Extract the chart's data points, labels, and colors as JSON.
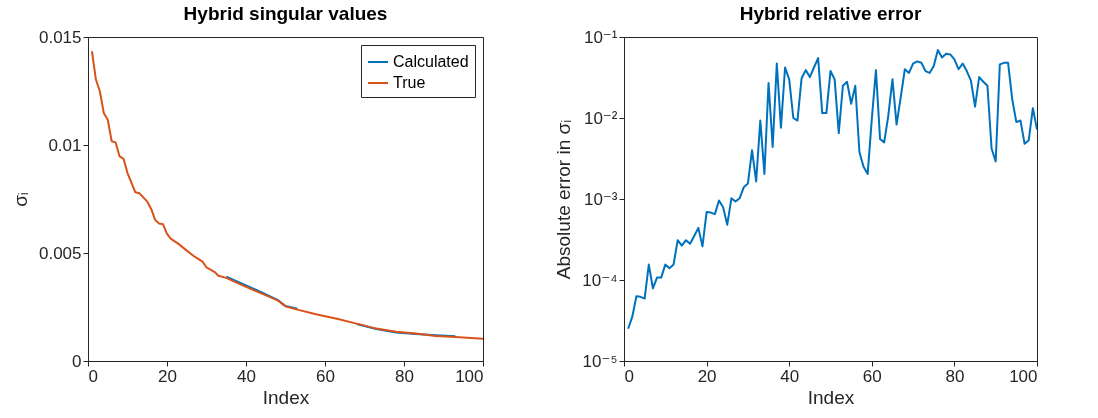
{
  "chart_data": [
    {
      "type": "line",
      "title": "Hybrid singular values",
      "xlabel": "Index",
      "ylabel": "σᵢ",
      "xlim": [
        0,
        100
      ],
      "xticks": [
        0,
        20,
        40,
        60,
        80,
        100
      ],
      "ylim": [
        0,
        0.015
      ],
      "yticks": [
        0,
        0.005,
        0.01,
        0.015
      ],
      "grid": false,
      "legend": "top right",
      "x": [
        1,
        2,
        3,
        4,
        5,
        6,
        7,
        8,
        9,
        10,
        12,
        13,
        15,
        16,
        17,
        18,
        19,
        20,
        21,
        23,
        25,
        27,
        29,
        30,
        32,
        33,
        35,
        39,
        43,
        48,
        50,
        53,
        58,
        63,
        68,
        73,
        78,
        83,
        88,
        93,
        99,
        100
      ],
      "series": [
        {
          "name": "Calculated",
          "color": "#0072bd",
          "values": [
            null,
            null,
            null,
            null,
            null,
            null,
            null,
            null,
            null,
            null,
            null,
            null,
            null,
            null,
            null,
            null,
            null,
            null,
            null,
            null,
            null,
            null,
            null,
            null,
            null,
            null,
            0.0039,
            0.00358,
            0.00326,
            0.00283,
            0.00255,
            0.00242,
            null,
            null,
            0.00171,
            0.00148,
            0.00132,
            0.00125,
            0.00119,
            0.00115,
            null,
            null
          ]
        },
        {
          "name": "True",
          "color": "#d95319",
          "values": [
            0.01434,
            0.01303,
            0.01249,
            0.01148,
            0.01117,
            0.01017,
            0.01012,
            0.00947,
            0.00936,
            0.0087,
            0.00781,
            0.00777,
            0.00738,
            0.00704,
            0.00653,
            0.00637,
            0.00633,
            0.00588,
            0.00565,
            0.00541,
            0.00511,
            0.00483,
            0.0046,
            0.00433,
            0.00413,
            0.00395,
            0.00385,
            0.00351,
            0.0032,
            0.00281,
            0.00253,
            0.00238,
            0.00215,
            0.00196,
            0.00173,
            0.0015,
            0.00135,
            0.00127,
            0.00116,
            0.00111,
            0.00104,
            0.00103
          ]
        }
      ]
    },
    {
      "type": "line",
      "title": "Hybrid relative error",
      "xlabel": "Index",
      "ylabel": "Absolute error in σᵢ",
      "log": "y",
      "xlim": [
        0,
        100
      ],
      "xticks": [
        0,
        20,
        40,
        60,
        80,
        100
      ],
      "ylim": [
        1e-05,
        0.1
      ],
      "yticks": [
        {
          "value": 1e-05,
          "label": "10⁻⁵"
        },
        {
          "value": 0.0001,
          "label": "10⁻⁴"
        },
        {
          "value": 0.001,
          "label": "10⁻³"
        },
        {
          "value": 0.01,
          "label": "10⁻²"
        },
        {
          "value": 0.1,
          "label": "10⁻¹"
        }
      ],
      "grid": false,
      "x": [
        1,
        2,
        3,
        4,
        5,
        6,
        7,
        8,
        9,
        10,
        11,
        12,
        13,
        14,
        15,
        16,
        17,
        18,
        19,
        20,
        21,
        22,
        23,
        24,
        25,
        26,
        27,
        28,
        29,
        30,
        31,
        32,
        33,
        34,
        35,
        36,
        37,
        38,
        39,
        40,
        41,
        42,
        43,
        44,
        45,
        46,
        47,
        48,
        49,
        50,
        51,
        52,
        53,
        54,
        55,
        56,
        57,
        58,
        59,
        60,
        61,
        62,
        63,
        64,
        65,
        66,
        67,
        68,
        69,
        70,
        71,
        72,
        73,
        74,
        75,
        76,
        77,
        78,
        79,
        80,
        81,
        82,
        83,
        84,
        85,
        86,
        87,
        88,
        89,
        90,
        91,
        92,
        93,
        94,
        95,
        96,
        97,
        98,
        99,
        100
      ],
      "series": [
        {
          "color": "#0072bd",
          "values": [
            2.5e-05,
            3.5e-05,
            6.3e-05,
            6.2e-05,
            5.9e-05,
            0.000155,
            7.9e-05,
            0.000107,
            0.000107,
            0.000155,
            0.00014,
            0.000155,
            0.00031,
            0.000265,
            0.00031,
            0.00028,
            0.00035,
            0.00044,
            0.00026,
            0.00069,
            0.00068,
            0.00065,
            0.00096,
            0.00079,
            0.00048,
            0.00102,
            0.00093,
            0.00102,
            0.0014,
            0.00155,
            0.004,
            0.00165,
            0.0093,
            0.00204,
            0.027,
            0.0044,
            0.047,
            0.0076,
            0.042,
            0.03,
            0.01,
            0.0093,
            0.031,
            0.039,
            0.032,
            0.042,
            0.055,
            0.0115,
            0.0115,
            0.038,
            0.03,
            0.0065,
            0.025,
            0.028,
            0.015,
            0.025,
            0.0038,
            0.0025,
            0.00204,
            0.0097,
            0.039,
            0.0055,
            0.005,
            0.0107,
            0.03,
            0.0083,
            0.018,
            0.04,
            0.036,
            0.047,
            0.05,
            0.048,
            0.038,
            0.036,
            0.044,
            0.069,
            0.056,
            0.062,
            0.061,
            0.053,
            0.04,
            0.047,
            0.038,
            0.029,
            0.0138,
            0.032,
            0.028,
            0.025,
            0.0042,
            0.0029,
            0.046,
            0.048,
            0.048,
            0.017,
            0.0089,
            0.0093,
            0.0048,
            0.0053,
            0.0132,
            0.0072
          ]
        }
      ]
    }
  ]
}
